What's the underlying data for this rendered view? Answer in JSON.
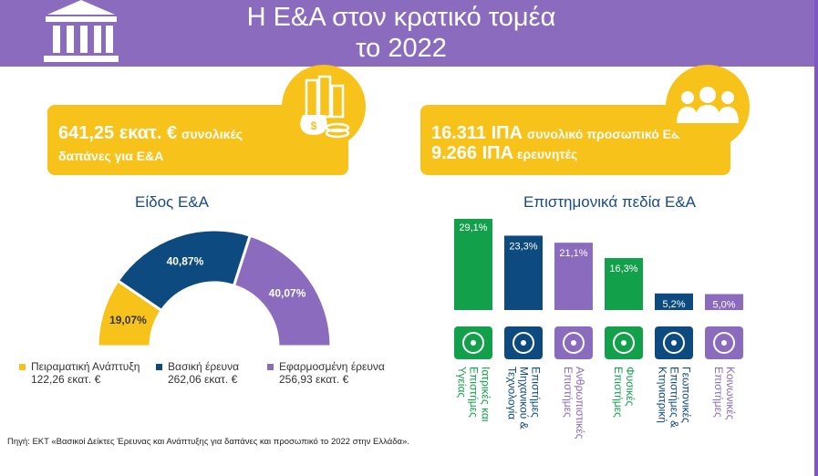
{
  "header": {
    "title_line1": "Η Ε&Α στον κρατικό τομέα",
    "title_line2": "το 2022"
  },
  "card_left": {
    "amount": "641,25 εκατ. €",
    "text1": "συνολικές",
    "text2": "δαπάνες για Ε&Α"
  },
  "card_right": {
    "line1_value": "16.311 ΙΠΑ",
    "line1_text": "συνολικό προσωπικό Ε&Α",
    "line2_value": "9.266 ΙΠΑ",
    "line2_text": "ερευνητές"
  },
  "colors": {
    "header": "#8a6bbe",
    "yellow": "#f7c21a",
    "navy": "#0d4a80",
    "purple": "#8a6bbe",
    "green": "#13a04a",
    "title_blue": "#1a4a8a"
  },
  "chart_data": [
    {
      "type": "pie",
      "style": "half-donut",
      "title": "Είδος Ε&Α",
      "slices": [
        {
          "label": "Πειραματική Ανάπτυξη",
          "value": 19.07,
          "display": "19,07%",
          "amount": "122,26 εκατ. €",
          "color": "#f7c21a"
        },
        {
          "label": "Βασική έρευνα",
          "value": 40.87,
          "display": "40,87%",
          "amount": "262,06 εκατ. €",
          "color": "#0d4a80"
        },
        {
          "label": "Εφαρμοσμένη έρευνα",
          "value": 40.07,
          "display": "40,07%",
          "amount": "256,93 εκατ. €",
          "color": "#8a6bbe"
        }
      ],
      "legend_placement": "bottom"
    },
    {
      "type": "bar",
      "title": "Επιστημονικά πεδία Ε&Α",
      "categories": [
        "Ιατρικές και Επιστήμες Υγείας",
        "Επιστήμες Μηχανικού & Τεχνολογία",
        "Ανθρωπιστικές Επιστήμες",
        "Φυσικές Επιστήμες",
        "Γεωπονικές Επιστήμες & Κτηνιατρική",
        "Κοινωνικές Επιστήμες"
      ],
      "values": [
        29.1,
        23.3,
        21.1,
        16.3,
        5.2,
        5.0
      ],
      "labels": [
        "29,1%",
        "23,3%",
        "21,1%",
        "16,3%",
        "5,2%",
        "5,0%"
      ],
      "colors": [
        "#13a04a",
        "#0d4a80",
        "#8a6bbe",
        "#13a04a",
        "#0d4a80",
        "#8a6bbe"
      ],
      "category_lines": [
        [
          "Ιατρικές και",
          "Επιστήμες",
          "Υγείας"
        ],
        [
          "Επιστήμες",
          "Μηχανικού &",
          "Τεχνολογία"
        ],
        [
          "Ανθρωπιστικές",
          "Επιστήμες"
        ],
        [
          "Φυσικές",
          "Επιστήμες"
        ],
        [
          "Γεωπονικές",
          "Επιστήμες &",
          "Κτηνιατρική"
        ],
        [
          "Κοινωνικές",
          "Επιστήμες"
        ]
      ],
      "icons": [
        "dna-icon",
        "robot-arm-icon",
        "thinker-icon",
        "atom-icon",
        "field-icon",
        "people-group-icon"
      ],
      "grid": false
    }
  ],
  "source": "Πηγή: ΕΚΤ «Βασικοί Δείκτες Έρευνας και Ανάπτυξης για δαπάνες και προσωπικό το 2022 στην Ελλάδα»."
}
